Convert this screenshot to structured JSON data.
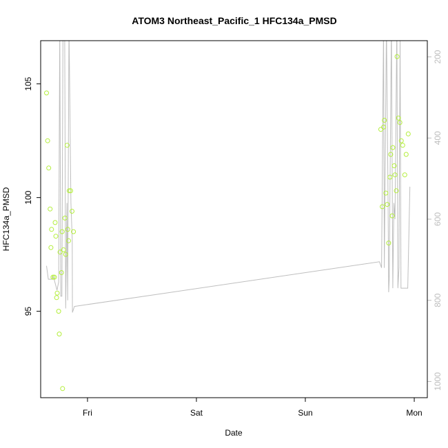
{
  "chart_data": {
    "type": "scatter",
    "title": "ATOM3 Northeast_Pacific_1 HFC134a_PMSD",
    "xlabel": "Date",
    "ylabel": "HFC134a_PMSD",
    "x_tick_labels": [
      "Fri",
      "Sat",
      "Sun",
      "Mon"
    ],
    "x_ticks_days": [
      1,
      2,
      3,
      4
    ],
    "xlim_days": [
      0.57,
      4.12
    ],
    "ylim": [
      91.2,
      106.9
    ],
    "y_ticks": [
      95,
      100,
      105
    ],
    "y_tick_labels": [
      "95",
      "100",
      "105"
    ],
    "y2_label": "",
    "y2lim_reversed": [
      1040,
      160
    ],
    "y2_ticks": [
      200,
      400,
      600,
      800,
      1000
    ],
    "y2_tick_labels": [
      "200",
      "400",
      "600",
      "800",
      "1000"
    ],
    "grid": false,
    "legend": "none",
    "colors": {
      "points": "#b3ee3a",
      "line": "#bebebe",
      "axis": "#000000",
      "right_axis": "#bdbdbd"
    },
    "series": [
      {
        "type": "points",
        "axis": "left",
        "points": [
          {
            "x": 0.624,
            "y": 104.6
          },
          {
            "x": 0.634,
            "y": 102.5
          },
          {
            "x": 0.644,
            "y": 101.3
          },
          {
            "x": 0.657,
            "y": 99.5
          },
          {
            "x": 0.664,
            "y": 97.8
          },
          {
            "x": 0.67,
            "y": 98.6
          },
          {
            "x": 0.683,
            "y": 96.5
          },
          {
            "x": 0.696,
            "y": 96.5
          },
          {
            "x": 0.703,
            "y": 98.9
          },
          {
            "x": 0.709,
            "y": 98.3
          },
          {
            "x": 0.716,
            "y": 95.6
          },
          {
            "x": 0.722,
            "y": 95.8
          },
          {
            "x": 0.735,
            "y": 95.0
          },
          {
            "x": 0.741,
            "y": 94.0
          },
          {
            "x": 0.748,
            "y": 97.6
          },
          {
            "x": 0.761,
            "y": 96.7
          },
          {
            "x": 0.767,
            "y": 98.5
          },
          {
            "x": 0.771,
            "y": 91.6
          },
          {
            "x": 0.78,
            "y": 97.7
          },
          {
            "x": 0.793,
            "y": 99.1
          },
          {
            "x": 0.8,
            "y": 97.5
          },
          {
            "x": 0.813,
            "y": 102.3
          },
          {
            "x": 0.819,
            "y": 98.6
          },
          {
            "x": 0.826,
            "y": 98.1
          },
          {
            "x": 0.832,
            "y": 100.3
          },
          {
            "x": 0.845,
            "y": 100.3
          },
          {
            "x": 0.858,
            "y": 99.4
          },
          {
            "x": 0.871,
            "y": 98.5
          },
          {
            "x": 3.693,
            "y": 103.0
          },
          {
            "x": 3.706,
            "y": 99.6
          },
          {
            "x": 3.719,
            "y": 103.1
          },
          {
            "x": 3.726,
            "y": 103.4
          },
          {
            "x": 3.739,
            "y": 100.2
          },
          {
            "x": 3.752,
            "y": 99.7
          },
          {
            "x": 3.765,
            "y": 98.0
          },
          {
            "x": 3.777,
            "y": 100.9
          },
          {
            "x": 3.784,
            "y": 101.9
          },
          {
            "x": 3.797,
            "y": 99.2
          },
          {
            "x": 3.803,
            "y": 102.2
          },
          {
            "x": 3.816,
            "y": 101.4
          },
          {
            "x": 3.823,
            "y": 101.0
          },
          {
            "x": 3.835,
            "y": 100.3
          },
          {
            "x": 3.842,
            "y": 106.2
          },
          {
            "x": 3.855,
            "y": 103.5
          },
          {
            "x": 3.868,
            "y": 103.3
          },
          {
            "x": 3.881,
            "y": 102.5
          },
          {
            "x": 3.894,
            "y": 102.3
          },
          {
            "x": 3.913,
            "y": 101.0
          },
          {
            "x": 3.926,
            "y": 101.9
          },
          {
            "x": 3.945,
            "y": 102.8
          }
        ]
      },
      {
        "type": "line",
        "axis": "right",
        "points": [
          {
            "x": 0.624,
            "y": 715
          },
          {
            "x": 0.64,
            "y": 748
          },
          {
            "x": 0.68,
            "y": 748
          },
          {
            "x": 0.685,
            "y": 740
          },
          {
            "x": 0.695,
            "y": 750
          },
          {
            "x": 0.72,
            "y": 775
          },
          {
            "x": 0.735,
            "y": 755
          },
          {
            "x": 0.745,
            "y": 120
          },
          {
            "x": 0.755,
            "y": 790
          },
          {
            "x": 0.765,
            "y": 790
          },
          {
            "x": 0.775,
            "y": 120
          },
          {
            "x": 0.79,
            "y": 120
          },
          {
            "x": 0.8,
            "y": 820
          },
          {
            "x": 0.812,
            "y": 560
          },
          {
            "x": 0.818,
            "y": 800
          },
          {
            "x": 0.83,
            "y": 120
          },
          {
            "x": 0.848,
            "y": 560
          },
          {
            "x": 0.86,
            "y": 650
          },
          {
            "x": 0.862,
            "y": 830
          },
          {
            "x": 0.88,
            "y": 815
          },
          {
            "x": 3.68,
            "y": 705
          },
          {
            "x": 3.7,
            "y": 720
          },
          {
            "x": 3.718,
            "y": 120
          },
          {
            "x": 3.725,
            "y": 720
          },
          {
            "x": 3.745,
            "y": 120
          },
          {
            "x": 3.76,
            "y": 565
          },
          {
            "x": 3.765,
            "y": 780
          },
          {
            "x": 3.77,
            "y": 750
          },
          {
            "x": 3.79,
            "y": 120
          },
          {
            "x": 3.803,
            "y": 770
          },
          {
            "x": 3.813,
            "y": 560
          },
          {
            "x": 3.823,
            "y": 600
          },
          {
            "x": 3.84,
            "y": 120
          },
          {
            "x": 3.85,
            "y": 770
          },
          {
            "x": 3.86,
            "y": 720
          },
          {
            "x": 3.87,
            "y": 150
          },
          {
            "x": 3.878,
            "y": 770
          },
          {
            "x": 3.94,
            "y": 770
          },
          {
            "x": 3.96,
            "y": 520
          }
        ]
      }
    ]
  }
}
